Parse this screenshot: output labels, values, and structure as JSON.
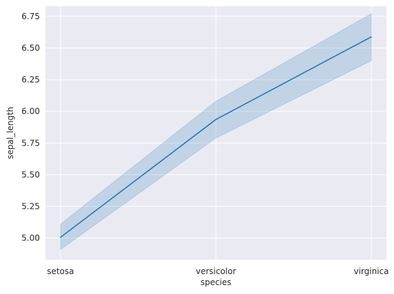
{
  "chart_data": {
    "type": "line",
    "title": "",
    "xlabel": "species",
    "ylabel": "sepal_length",
    "categories": [
      "setosa",
      "versicolor",
      "virginica"
    ],
    "series": [
      {
        "values": [
          5.006,
          5.936,
          6.588
        ],
        "ci_lower": [
          4.91,
          5.79,
          6.4
        ],
        "ci_upper": [
          5.11,
          6.08,
          6.77
        ]
      }
    ],
    "ylim": [
      4.83,
      6.83
    ],
    "yticks": [
      5.0,
      5.25,
      5.5,
      5.75,
      6.0,
      6.25,
      6.5,
      6.75
    ],
    "ytick_labels": [
      "5.00",
      "5.25",
      "5.50",
      "5.75",
      "6.00",
      "6.25",
      "6.50",
      "6.75"
    ],
    "grid": true,
    "colors": {
      "plot_background": "#eaeaf2",
      "line": "#1f77b4",
      "band": "#1f77b4",
      "grid": "#ffffff"
    }
  }
}
